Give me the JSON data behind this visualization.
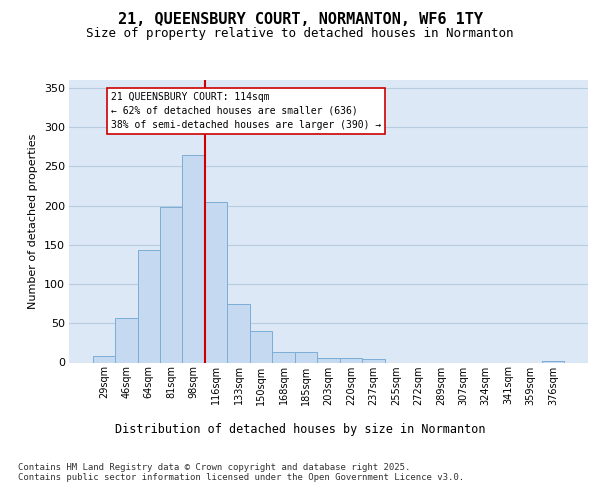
{
  "title_line1": "21, QUEENSBURY COURT, NORMANTON, WF6 1TY",
  "title_line2": "Size of property relative to detached houses in Normanton",
  "xlabel": "Distribution of detached houses by size in Normanton",
  "ylabel": "Number of detached properties",
  "bar_labels": [
    "29sqm",
    "46sqm",
    "64sqm",
    "81sqm",
    "98sqm",
    "116sqm",
    "133sqm",
    "150sqm",
    "168sqm",
    "185sqm",
    "203sqm",
    "220sqm",
    "237sqm",
    "255sqm",
    "272sqm",
    "289sqm",
    "307sqm",
    "324sqm",
    "341sqm",
    "359sqm",
    "376sqm"
  ],
  "bar_values": [
    8,
    57,
    144,
    198,
    265,
    205,
    75,
    40,
    13,
    13,
    6,
    6,
    4,
    0,
    0,
    0,
    0,
    0,
    0,
    0,
    2
  ],
  "bar_color": "#c5d9f0",
  "bar_edgecolor": "#7baed6",
  "vline_color": "#cc0000",
  "vline_idx": 4.5,
  "annotation_text": "21 QUEENSBURY COURT: 114sqm\n← 62% of detached houses are smaller (636)\n38% of semi-detached houses are larger (390) →",
  "annotation_box_facecolor": "white",
  "annotation_box_edgecolor": "#cc0000",
  "ylim": [
    0,
    360
  ],
  "yticks": [
    0,
    50,
    100,
    150,
    200,
    250,
    300,
    350
  ],
  "grid_color": "#b8ccdf",
  "plot_bg_color": "#dce8f5",
  "fig_bg_color": "#ffffff",
  "footer_text": "Contains HM Land Registry data © Crown copyright and database right 2025.\nContains public sector information licensed under the Open Government Licence v3.0.",
  "title_fontsize": 11,
  "subtitle_fontsize": 9,
  "annotation_fontsize": 7,
  "ylabel_fontsize": 8,
  "xlabel_fontsize": 8.5,
  "tick_fontsize": 7,
  "ytick_fontsize": 8,
  "footer_fontsize": 6.5
}
